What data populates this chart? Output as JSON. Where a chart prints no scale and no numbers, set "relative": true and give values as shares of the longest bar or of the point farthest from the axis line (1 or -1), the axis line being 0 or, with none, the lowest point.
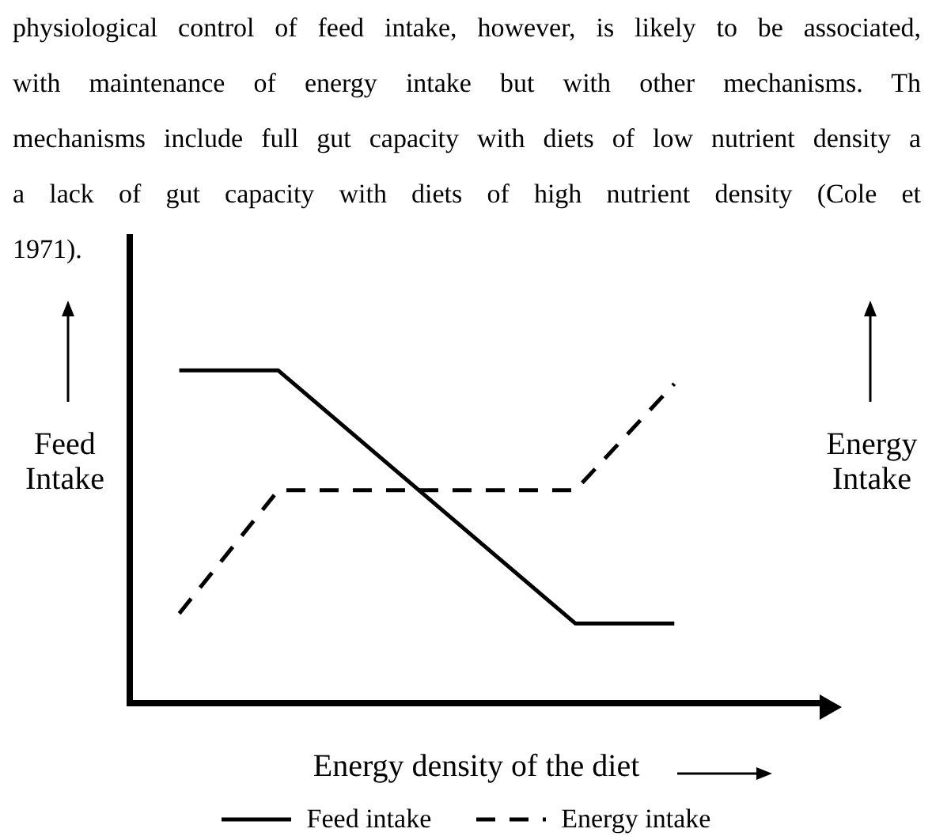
{
  "chart_data": {
    "type": "line",
    "relative": true,
    "xlabel": "Energy density of the diet",
    "ylabel": "Feed Intake",
    "y2label": "Energy Intake",
    "categories": [
      null,
      null,
      null,
      null,
      null,
      null,
      null
    ],
    "series": [
      {
        "name": "Feed intake",
        "color": "#000000",
        "line_style": "solid",
        "values": [
          1,
          1,
          null,
          null,
          0.24,
          0.24,
          null
        ]
      },
      {
        "name": "Energy intake",
        "color": "#000000",
        "line_style": "dashed",
        "values": [
          0.27,
          0.64,
          null,
          null,
          0.64,
          0.96,
          null
        ]
      }
    ],
    "legend": "bottom",
    "marker": "none",
    "grid": false,
    "annotations": [
      "physiological control of feed intake, however, is likely to be associated,",
      "with maintenance of energy intake but with other mechanisms. Th",
      "mechanisms include full gut capacity with diets of low nutrient density a",
      "a lack of gut capacity with diets of high nutrient density (Cole et",
      "1971)."
    ]
  }
}
